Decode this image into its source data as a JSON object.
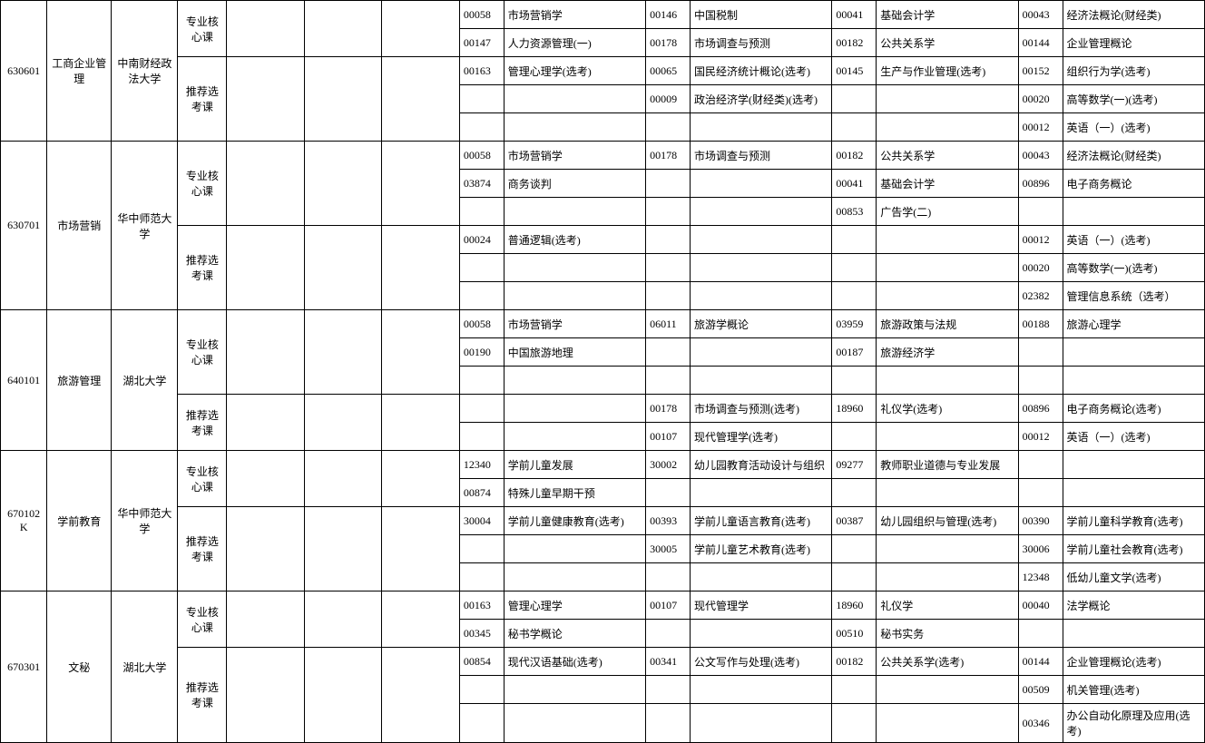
{
  "majors": [
    {
      "code": "630601",
      "name": "工商企业管理",
      "school": "中南财经政法大学",
      "groups": [
        {
          "type": "专业核心课",
          "rows": [
            {
              "a": "00058",
              "b": "市场营销学",
              "c": "00146",
              "d": "中国税制",
              "e": "00041",
              "f": "基础会计学",
              "g": "00043",
              "h": "经济法概论(财经类)"
            },
            {
              "a": "00147",
              "b": "人力资源管理(一)",
              "c": "00178",
              "d": "市场调查与预测",
              "e": "00182",
              "f": "公共关系学",
              "g": "00144",
              "h": "企业管理概论"
            }
          ]
        },
        {
          "type": "推荐选考课",
          "rows": [
            {
              "a": "00163",
              "b": "管理心理学(选考)",
              "c": "00065",
              "d": "国民经济统计概论(选考)",
              "e": "00145",
              "f": "生产与作业管理(选考)",
              "g": "00152",
              "h": "组织行为学(选考)"
            },
            {
              "a": "",
              "b": "",
              "c": "00009",
              "d": "政治经济学(财经类)(选考)",
              "e": "",
              "f": "",
              "g": "00020",
              "h": "高等数学(一)(选考)"
            },
            {
              "a": "",
              "b": "",
              "c": "",
              "d": "",
              "e": "",
              "f": "",
              "g": "00012",
              "h": "英语（一）(选考)"
            }
          ]
        }
      ]
    },
    {
      "code": "630701",
      "name": "市场营销",
      "school": "华中师范大学",
      "groups": [
        {
          "type": "专业核心课",
          "rows": [
            {
              "a": "00058",
              "b": "市场营销学",
              "c": "00178",
              "d": "市场调查与预测",
              "e": "00182",
              "f": "公共关系学",
              "g": "00043",
              "h": "经济法概论(财经类)"
            },
            {
              "a": "03874",
              "b": "商务谈判",
              "c": "",
              "d": "",
              "e": "00041",
              "f": "基础会计学",
              "g": "00896",
              "h": "电子商务概论"
            },
            {
              "a": "",
              "b": "",
              "c": "",
              "d": "",
              "e": "00853",
              "f": "广告学(二)",
              "g": "",
              "h": ""
            }
          ]
        },
        {
          "type": "推荐选考课",
          "rows": [
            {
              "a": "00024",
              "b": "普通逻辑(选考)",
              "c": "",
              "d": "",
              "e": "",
              "f": "",
              "g": "00012",
              "h": "英语（一）(选考)"
            },
            {
              "a": "",
              "b": "",
              "c": "",
              "d": "",
              "e": "",
              "f": "",
              "g": "00020",
              "h": "高等数学(一)(选考)"
            },
            {
              "a": "",
              "b": "",
              "c": "",
              "d": "",
              "e": "",
              "f": "",
              "g": "02382",
              "h": "管理信息系统（选考）"
            }
          ]
        }
      ]
    },
    {
      "code": "640101",
      "name": "旅游管理",
      "school": "湖北大学",
      "groups": [
        {
          "type": "专业核心课",
          "rows": [
            {
              "a": "00058",
              "b": "市场营销学",
              "c": "06011",
              "d": "旅游学概论",
              "e": "03959",
              "f": "旅游政策与法规",
              "g": "00188",
              "h": "旅游心理学"
            },
            {
              "a": "00190",
              "b": "中国旅游地理",
              "c": "",
              "d": "",
              "e": "00187",
              "f": "旅游经济学",
              "g": "",
              "h": ""
            },
            {
              "a": "",
              "b": "",
              "c": "",
              "d": "",
              "e": "",
              "f": "",
              "g": "",
              "h": ""
            }
          ]
        },
        {
          "type": "推荐选考课",
          "rows": [
            {
              "a": "",
              "b": "",
              "c": "00178",
              "d": "市场调查与预测(选考)",
              "e": "18960",
              "f": "礼仪学(选考)",
              "g": "00896",
              "h": "电子商务概论(选考)"
            },
            {
              "a": "",
              "b": "",
              "c": "00107",
              "d": "现代管理学(选考)",
              "e": "",
              "f": "",
              "g": "00012",
              "h": "英语（一）(选考)"
            }
          ]
        }
      ]
    },
    {
      "code": "670102K",
      "name": "学前教育",
      "school": "华中师范大学",
      "groups": [
        {
          "type": "专业核心课",
          "rows": [
            {
              "a": "12340",
              "b": "学前儿童发展",
              "c": "30002",
              "d": "幼儿园教育活动设计与组织",
              "e": "09277",
              "f": "教师职业道德与专业发展",
              "g": "",
              "h": ""
            },
            {
              "a": "00874",
              "b": "特殊儿童早期干预",
              "c": "",
              "d": "",
              "e": "",
              "f": "",
              "g": "",
              "h": ""
            }
          ]
        },
        {
          "type": "推荐选考课",
          "rows": [
            {
              "a": "30004",
              "b": "学前儿童健康教育(选考)",
              "c": "00393",
              "d": "学前儿童语言教育(选考)",
              "e": "00387",
              "f": "幼儿园组织与管理(选考)",
              "g": "00390",
              "h": "学前儿童科学教育(选考)"
            },
            {
              "a": "",
              "b": "",
              "c": "30005",
              "d": "学前儿童艺术教育(选考)",
              "e": "",
              "f": "",
              "g": "30006",
              "h": "学前儿童社会教育(选考)"
            },
            {
              "a": "",
              "b": "",
              "c": "",
              "d": "",
              "e": "",
              "f": "",
              "g": "12348",
              "h": "低幼儿童文学(选考)"
            }
          ]
        }
      ]
    },
    {
      "code": "670301",
      "name": "文秘",
      "school": "湖北大学",
      "groups": [
        {
          "type": "专业核心课",
          "rows": [
            {
              "a": "00163",
              "b": "管理心理学",
              "c": "00107",
              "d": "现代管理学",
              "e": "18960",
              "f": "礼仪学",
              "g": "00040",
              "h": "法学概论"
            },
            {
              "a": "00345",
              "b": "秘书学概论",
              "c": "",
              "d": "",
              "e": "00510",
              "f": "秘书实务",
              "g": "",
              "h": ""
            }
          ]
        },
        {
          "type": "推荐选考课",
          "rows": [
            {
              "a": "00854",
              "b": "现代汉语基础(选考)",
              "c": "00341",
              "d": "公文写作与处理(选考)",
              "e": "00182",
              "f": "公共关系学(选考)",
              "g": "00144",
              "h": "企业管理概论(选考)"
            },
            {
              "a": "",
              "b": "",
              "c": "",
              "d": "",
              "e": "",
              "f": "",
              "g": "00509",
              "h": "机关管理(选考)"
            },
            {
              "a": "",
              "b": "",
              "c": "",
              "d": "",
              "e": "",
              "f": "",
              "g": "00346",
              "h": "办公自动化原理及应用(选考)"
            }
          ]
        }
      ]
    }
  ]
}
